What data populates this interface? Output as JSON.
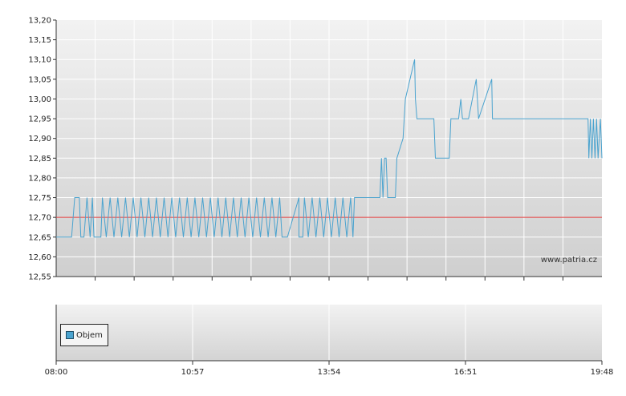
{
  "chart_data": [
    {
      "type": "line",
      "ylim": [
        12.55,
        13.2
      ],
      "yticks": [
        "12,55",
        "12,60",
        "12,65",
        "12,70",
        "12,75",
        "12,80",
        "12,85",
        "12,90",
        "12,95",
        "13,00",
        "13,05",
        "13,10",
        "13,15",
        "13,20"
      ],
      "reference_line": {
        "value": 12.7,
        "color": "#e03a3a"
      },
      "series_color": "#4aa3cf",
      "grid": true,
      "watermark": "www.patria.cz",
      "series": [
        {
          "points": [
            [
              "08:00",
              12.65
            ],
            [
              "08:20",
              12.65
            ],
            [
              "08:24",
              12.75
            ],
            [
              "08:30",
              12.75
            ],
            [
              "08:32",
              12.65
            ],
            [
              "08:36",
              12.65
            ],
            [
              "08:40",
              12.75
            ],
            [
              "08:44",
              12.65
            ],
            [
              "08:47",
              12.75
            ],
            [
              "08:49",
              12.65
            ],
            [
              "08:58",
              12.65
            ],
            [
              "09:00",
              12.75
            ],
            [
              "09:05",
              12.65
            ],
            [
              "09:10",
              12.75
            ],
            [
              "09:15",
              12.65
            ],
            [
              "09:20",
              12.75
            ],
            [
              "09:25",
              12.65
            ],
            [
              "09:30",
              12.75
            ],
            [
              "09:35",
              12.65
            ],
            [
              "09:40",
              12.75
            ],
            [
              "09:45",
              12.65
            ],
            [
              "09:50",
              12.75
            ],
            [
              "09:55",
              12.65
            ],
            [
              "10:00",
              12.75
            ],
            [
              "10:05",
              12.65
            ],
            [
              "10:10",
              12.75
            ],
            [
              "10:15",
              12.65
            ],
            [
              "10:20",
              12.75
            ],
            [
              "10:25",
              12.65
            ],
            [
              "10:30",
              12.75
            ],
            [
              "10:35",
              12.65
            ],
            [
              "10:40",
              12.75
            ],
            [
              "10:45",
              12.65
            ],
            [
              "10:50",
              12.75
            ],
            [
              "10:55",
              12.65
            ],
            [
              "11:00",
              12.75
            ],
            [
              "11:05",
              12.65
            ],
            [
              "11:10",
              12.75
            ],
            [
              "11:15",
              12.65
            ],
            [
              "11:20",
              12.75
            ],
            [
              "11:25",
              12.65
            ],
            [
              "11:30",
              12.75
            ],
            [
              "11:35",
              12.65
            ],
            [
              "11:40",
              12.75
            ],
            [
              "11:45",
              12.65
            ],
            [
              "11:50",
              12.75
            ],
            [
              "11:55",
              12.65
            ],
            [
              "12:00",
              12.75
            ],
            [
              "12:05",
              12.65
            ],
            [
              "12:10",
              12.75
            ],
            [
              "12:15",
              12.65
            ],
            [
              "12:20",
              12.75
            ],
            [
              "12:25",
              12.65
            ],
            [
              "12:30",
              12.75
            ],
            [
              "12:35",
              12.65
            ],
            [
              "12:40",
              12.75
            ],
            [
              "12:45",
              12.65
            ],
            [
              "12:50",
              12.75
            ],
            [
              "12:53",
              12.65
            ],
            [
              "13:00",
              12.65
            ],
            [
              "13:15",
              12.75
            ],
            [
              "13:15",
              12.65
            ],
            [
              "13:20",
              12.65
            ],
            [
              "13:22",
              12.75
            ],
            [
              "13:27",
              12.65
            ],
            [
              "13:32",
              12.75
            ],
            [
              "13:37",
              12.65
            ],
            [
              "13:42",
              12.75
            ],
            [
              "13:47",
              12.65
            ],
            [
              "13:52",
              12.75
            ],
            [
              "13:57",
              12.65
            ],
            [
              "14:02",
              12.75
            ],
            [
              "14:07",
              12.65
            ],
            [
              "14:12",
              12.75
            ],
            [
              "14:17",
              12.65
            ],
            [
              "14:22",
              12.75
            ],
            [
              "14:25",
              12.65
            ],
            [
              "14:27",
              12.75
            ],
            [
              "15:00",
              12.75
            ],
            [
              "15:02",
              12.85
            ],
            [
              "15:04",
              12.75
            ],
            [
              "15:06",
              12.85
            ],
            [
              "15:08",
              12.85
            ],
            [
              "15:10",
              12.75
            ],
            [
              "15:20",
              12.75
            ],
            [
              "15:22",
              12.85
            ],
            [
              "15:30",
              12.9
            ],
            [
              "15:33",
              13.0
            ],
            [
              "15:45",
              13.1
            ],
            [
              "15:46",
              13.0
            ],
            [
              "15:48",
              12.95
            ],
            [
              "16:10",
              12.95
            ],
            [
              "16:12",
              12.85
            ],
            [
              "16:30",
              12.85
            ],
            [
              "16:32",
              12.95
            ],
            [
              "16:42",
              12.95
            ],
            [
              "16:45",
              13.0
            ],
            [
              "16:47",
              12.95
            ],
            [
              "16:55",
              12.95
            ],
            [
              "17:05",
              13.05
            ],
            [
              "17:08",
              12.95
            ],
            [
              "17:25",
              13.05
            ],
            [
              "17:26",
              12.95
            ],
            [
              "19:30",
              12.95
            ],
            [
              "19:31",
              12.85
            ],
            [
              "19:33",
              12.95
            ],
            [
              "19:35",
              12.85
            ],
            [
              "19:37",
              12.95
            ],
            [
              "19:39",
              12.85
            ],
            [
              "19:41",
              12.95
            ],
            [
              "19:43",
              12.85
            ],
            [
              "19:46",
              12.95
            ],
            [
              "19:48",
              12.85
            ]
          ]
        }
      ]
    },
    {
      "type": "bar",
      "xlabel": "",
      "x_ticks": [
        "08:00",
        "10:57",
        "13:54",
        "16:51",
        "19:48"
      ],
      "grid": true,
      "legend": "Objem",
      "legend_position": "bottom-left",
      "values": []
    }
  ]
}
